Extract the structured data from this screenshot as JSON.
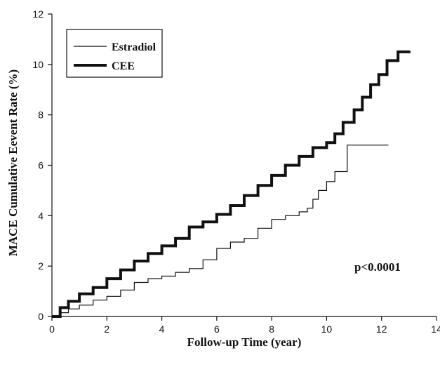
{
  "chart_data": {
    "type": "line",
    "title": "",
    "xlabel": "Follow-up Time (year)",
    "ylabel": "MACE Cumulative Eevent Rate (%)",
    "xlim": [
      0,
      14
    ],
    "ylim": [
      0,
      12
    ],
    "xticks": [
      "0",
      "2",
      "4",
      "6",
      "8",
      "10",
      "12",
      "14"
    ],
    "yticks": [
      "0",
      "2",
      "4",
      "6",
      "8",
      "10",
      "12"
    ],
    "grid": false,
    "legend_position": "top-left",
    "annotation": "p<0.0001",
    "series": [
      {
        "name": "Estradiol",
        "color": "#111111",
        "style": "thin-step",
        "x": [
          0,
          0.3,
          0.6,
          1.0,
          1.5,
          2.0,
          2.5,
          3.0,
          3.5,
          4.0,
          4.5,
          5.0,
          5.5,
          6.0,
          6.5,
          7.0,
          7.5,
          8.0,
          8.5,
          9.0,
          9.3,
          9.5,
          9.7,
          10.0,
          10.3,
          10.75,
          12.25
        ],
        "y": [
          0,
          0.15,
          0.3,
          0.45,
          0.65,
          0.8,
          1.05,
          1.35,
          1.5,
          1.6,
          1.75,
          1.9,
          2.25,
          2.7,
          2.95,
          3.1,
          3.5,
          3.85,
          4.0,
          4.15,
          4.3,
          4.65,
          5.0,
          5.35,
          5.75,
          6.8,
          6.8
        ]
      },
      {
        "name": "CEE",
        "color": "#111111",
        "style": "thick-step",
        "x": [
          0,
          0.3,
          0.6,
          1.0,
          1.5,
          2.0,
          2.5,
          3.0,
          3.5,
          4.0,
          4.5,
          5.0,
          5.5,
          6.0,
          6.5,
          7.0,
          7.5,
          8.0,
          8.5,
          9.0,
          9.5,
          10.0,
          10.3,
          10.6,
          11.0,
          11.3,
          11.6,
          11.9,
          12.2,
          12.6,
          13.0
        ],
        "y": [
          0,
          0.35,
          0.6,
          0.9,
          1.15,
          1.5,
          1.85,
          2.2,
          2.5,
          2.8,
          3.1,
          3.55,
          3.75,
          4.05,
          4.4,
          4.8,
          5.2,
          5.6,
          6.0,
          6.35,
          6.7,
          6.9,
          7.25,
          7.7,
          8.2,
          8.7,
          9.2,
          9.6,
          10.15,
          10.5,
          10.55
        ]
      }
    ]
  }
}
